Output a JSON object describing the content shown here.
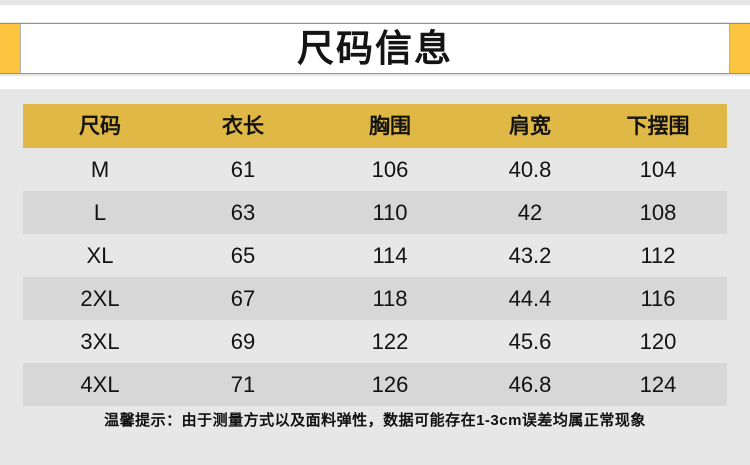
{
  "page": {
    "title": "尺码信息"
  },
  "table": {
    "headers": [
      "尺码",
      "衣长",
      "胸围",
      "肩宽",
      "下摆围"
    ],
    "rows": [
      [
        "M",
        "61",
        "106",
        "40.8",
        "104"
      ],
      [
        "L",
        "63",
        "110",
        "42",
        "108"
      ],
      [
        "XL",
        "65",
        "114",
        "43.2",
        "112"
      ],
      [
        "2XL",
        "67",
        "118",
        "44.4",
        "116"
      ],
      [
        "3XL",
        "69",
        "122",
        "45.6",
        "120"
      ],
      [
        "4XL",
        "71",
        "126",
        "46.8",
        "124"
      ]
    ]
  },
  "note": "温馨提示：由于测量方式以及面料弹性，数据可能存在1-3cm误差均属正常现象",
  "colors": {
    "accent_yellow": "#fcc53f",
    "header_gold": "#dfb845",
    "row_stripe": "#d7d7d7",
    "page_background": "#e7e7e7",
    "band_white": "#ffffff",
    "text_black": "#131313"
  },
  "chart_data": {
    "type": "table",
    "title": "尺码信息",
    "columns": [
      "尺码",
      "衣长",
      "胸围",
      "肩宽",
      "下摆围"
    ],
    "rows": [
      [
        "M",
        61,
        106,
        40.8,
        104
      ],
      [
        "L",
        63,
        110,
        42,
        108
      ],
      [
        "XL",
        65,
        114,
        43.2,
        112
      ],
      [
        "2XL",
        67,
        118,
        44.4,
        116
      ],
      [
        "3XL",
        69,
        122,
        45.6,
        120
      ],
      [
        "4XL",
        71,
        126,
        46.8,
        124
      ]
    ],
    "footnote": "温馨提示：由于测量方式以及面料弹性，数据可能存在1-3cm误差均属正常现象"
  }
}
